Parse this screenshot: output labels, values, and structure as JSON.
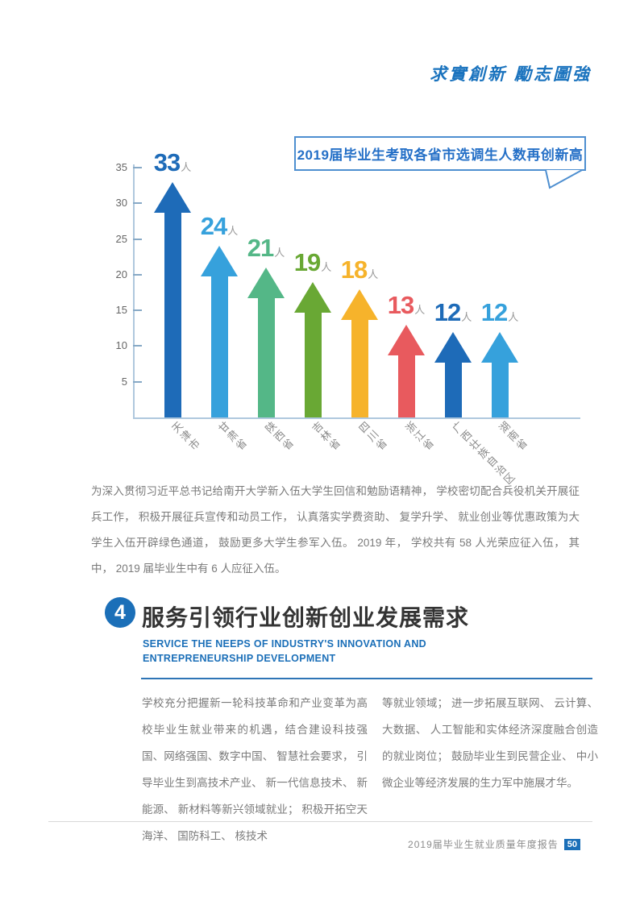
{
  "header": {
    "motto": "求實創新 勵志圖強"
  },
  "chart_data": {
    "type": "bar",
    "style": "upward-arrows",
    "title": "2019届毕业生考取各省市选调生人数再创新高",
    "categories": [
      "天津市",
      "甘肃省",
      "陕西省",
      "吉林省",
      "四川省",
      "浙江省",
      "广西壮族自治区",
      "湖南省"
    ],
    "values": [
      33,
      24,
      21,
      19,
      18,
      13,
      12,
      12
    ],
    "value_unit": "人",
    "bar_colors": [
      "#1E6BB8",
      "#36A1DC",
      "#54B787",
      "#69A834",
      "#F6B32B",
      "#E85A5E",
      "#1E6BB8",
      "#36A1DC"
    ],
    "ylim": [
      0,
      35
    ],
    "yticks": [
      5,
      10,
      15,
      20,
      25,
      30,
      35
    ],
    "grid": false,
    "legend": "none",
    "xlabel": "",
    "ylabel": ""
  },
  "paragraph1": "为深入贯彻习近平总书记给南开大学新入伍大学生回信和勉励语精神， 学校密切配合兵役机关开展征兵工作， 积极开展征兵宣传和动员工作， 认真落实学费资助、 复学升学、 就业创业等优惠政策为大学生入伍开辟绿色通道， 鼓励更多大学生参军入伍。 2019 年， 学校共有 58 人光荣应征入伍， 其中， 2019 届毕业生中有 6 人应征入伍。",
  "section": {
    "number": "4",
    "title": "服务引领行业创新创业发展需求",
    "subtitle_line1": "SERVICE THE NEEPS OF INDUSTRY'S INNOVATION AND",
    "subtitle_line2": "ENTREPRENEURSHIP DEVELOPMENT",
    "body_left": "学校充分把握新一轮科技革命和产业变革为高校毕业生就业带来的机遇，结合建设科技强国、网络强国、数字中国、 智慧社会要求， 引导毕业生到高技术产业、 新一代信息技术、 新能源、 新材料等新兴领域就业； 积极开拓空天海洋、 国防科工、 核技术",
    "body_right": "等就业领域； 进一步拓展互联网、 云计算、 大数据、 人工智能和实体经济深度融合创造的就业岗位； 鼓励毕业生到民营企业、 中小微企业等经济发展的生力军中施展才华。"
  },
  "footer": {
    "text": "2019届毕业生就业质量年度报告",
    "page": "50"
  },
  "colors": {
    "accent_blue": "#1B6FB8",
    "callout_border": "#4E8FD0",
    "callout_text": "#2570C7",
    "axis": "#AFC8DE",
    "body_text": "#7A7A7A"
  }
}
